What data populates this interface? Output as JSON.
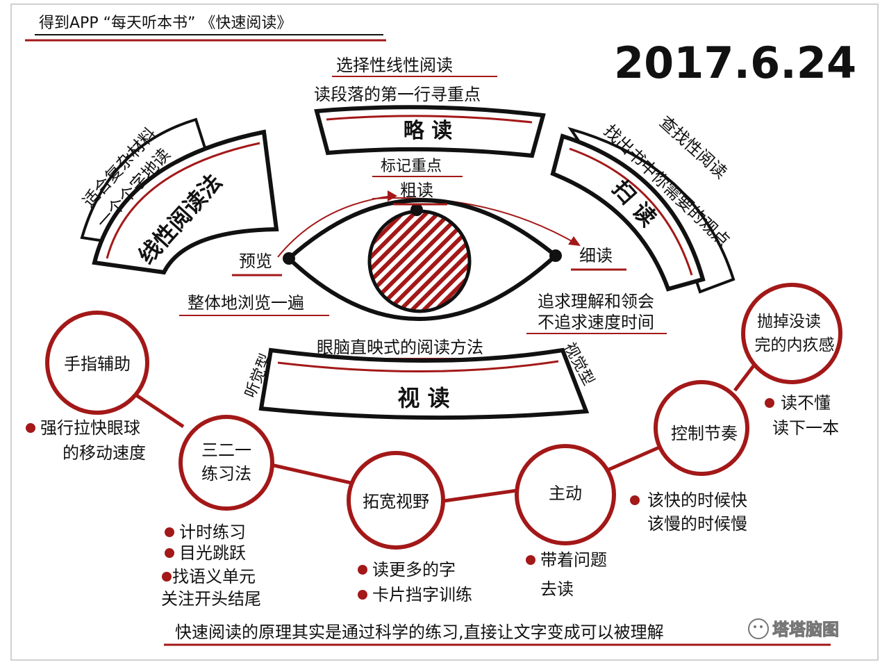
{
  "header": {
    "title": "得到APP  “每天听本书” 《快速阅读》",
    "date": "2017.6.24"
  },
  "colors": {
    "accent": "#a31818",
    "ink": "#111111",
    "paper": "#ffffff",
    "frame": "#d0d0d0"
  },
  "panels": {
    "left": {
      "title": "线性阅读法",
      "notes": [
        "适合复杂材料",
        "一个个字地读"
      ]
    },
    "top": {
      "title": "略 读",
      "notes": [
        "选择性线性阅读",
        "读段落的第一行寻重点"
      ],
      "below": "标记重点"
    },
    "right": {
      "title": "扫 读",
      "notes": [
        "查找性阅读",
        "找出书中你需要的观点"
      ]
    },
    "bottom": {
      "title": "视 读",
      "note_top": "眼脑直映式的阅读方法",
      "side_left": "听觉型",
      "side_right": "视觉型"
    }
  },
  "eye": {
    "left_label": "预览",
    "top_label": "粗读",
    "right_label": "细读",
    "left_note": "整体地浏览一遍",
    "right_notes": [
      "追求理解和领会",
      "不追求速度时间"
    ]
  },
  "circles": [
    {
      "label_lines": [
        "手指辅助"
      ],
      "notes": [
        "强行拉快眼球",
        "的移动速度"
      ]
    },
    {
      "label_lines": [
        "三二一",
        "练习法"
      ],
      "notes": [
        "计时练习",
        "目光跳跃",
        "找语义单元",
        "关注开头结尾"
      ]
    },
    {
      "label_lines": [
        "拓宽视野"
      ],
      "notes": [
        "读更多的字",
        "卡片挡字训练"
      ]
    },
    {
      "label_lines": [
        "主动"
      ],
      "notes": [
        "带着问题",
        "去读"
      ]
    },
    {
      "label_lines": [
        "控制节奏"
      ],
      "notes": [
        "该快的时候快",
        "该慢的时候慢"
      ]
    },
    {
      "label_lines": [
        "抛掉没读",
        "完的内疚感"
      ],
      "notes": [
        "读不懂",
        "读下一本"
      ]
    }
  ],
  "footer": {
    "summary": "快速阅读的原理其实是通过科学的练习,直接让文字变成可以被理解",
    "watermark": "塔塔脑图"
  }
}
